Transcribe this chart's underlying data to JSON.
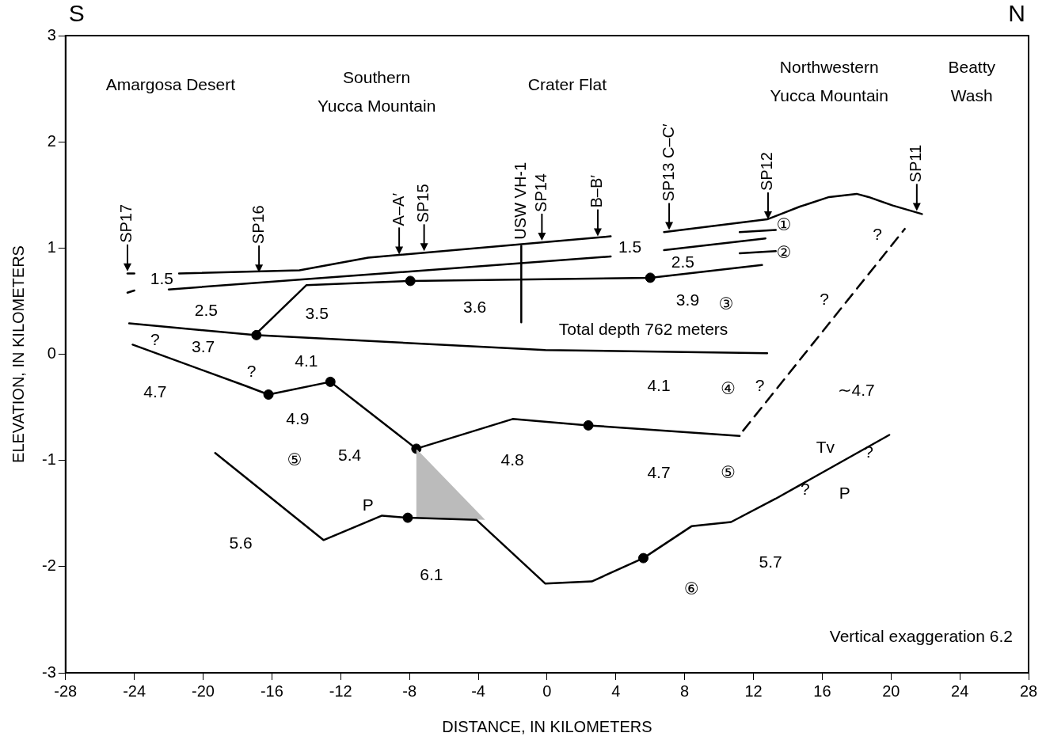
{
  "chart_data": {
    "type": "line",
    "xlabel": "DISTANCE, IN KILOMETERS",
    "ylabel": "ELEVATION, IN KILOMETERS",
    "xlim": [
      -28,
      28
    ],
    "xticks": [
      -28,
      -24,
      -20,
      -16,
      -12,
      -8,
      -4,
      0,
      4,
      8,
      12,
      16,
      20,
      24,
      28
    ],
    "ylim": [
      -3,
      3
    ],
    "yticks": [
      -3,
      -2,
      -1,
      0,
      1,
      2,
      3
    ],
    "legend": false,
    "series": [
      {
        "color": "#000000",
        "x": [
          -21.4,
          -14.4,
          -10.4,
          3.7
        ],
        "values": [
          0.76,
          0.79,
          0.91,
          1.11
        ]
      },
      {
        "color": "#000000",
        "x": [
          6.8,
          12.8,
          13.6,
          14.7,
          16.4,
          18.0,
          18.7,
          20.1,
          21.8
        ],
        "values": [
          1.15,
          1.27,
          1.32,
          1.39,
          1.48,
          1.51,
          1.48,
          1.4,
          1.32
        ]
      },
      {
        "color": "#000000",
        "x": [
          -24.4,
          -24.0
        ],
        "values": [
          0.76,
          0.76
        ]
      },
      {
        "color": "#000000",
        "x": [
          -24.4,
          -24.0
        ],
        "values": [
          0.58,
          0.6
        ]
      },
      {
        "color": "#000000",
        "x": [
          -22.0,
          3.7
        ],
        "values": [
          0.61,
          0.92
        ]
      },
      {
        "color": "#000000",
        "x": [
          6.8,
          12.7
        ],
        "values": [
          0.98,
          1.09
        ]
      },
      {
        "color": "#000000",
        "x": [
          11.2,
          13.3
        ],
        "values": [
          1.15,
          1.17
        ]
      },
      {
        "color": "#000000",
        "x": [
          11.2,
          13.3
        ],
        "values": [
          0.95,
          0.97
        ]
      },
      {
        "color": "#000000",
        "x": [
          -17.0,
          -14.0,
          -7.95,
          6.0,
          12.5
        ],
        "values": [
          0.18,
          0.65,
          0.69,
          0.72,
          0.84
        ]
      },
      {
        "color": "#000000",
        "x": [
          -24.3,
          -17.0,
          -0.1,
          12.8
        ],
        "values": [
          0.29,
          0.18,
          0.04,
          0.01
        ]
      },
      {
        "color": "#000000",
        "x": [
          -1.5,
          -1.5
        ],
        "values": [
          1.02,
          0.3
        ]
      },
      {
        "color": "#000000",
        "x": [
          -24.1,
          -17.5,
          -16.2,
          -12.6,
          -7.6,
          -2.0,
          2.4,
          11.2
        ],
        "values": [
          0.09,
          -0.3,
          -0.38,
          -0.26,
          -0.89,
          -0.61,
          -0.67,
          -0.77
        ]
      },
      {
        "color": "#000000",
        "line_style": "dashed",
        "x": [
          11.4,
          20.8
        ],
        "values": [
          -0.72,
          1.18
        ]
      },
      {
        "color": "#000000",
        "x": [
          -19.3,
          -13.0,
          -9.6,
          -8.1,
          -4.1,
          -0.1,
          2.6,
          5.6,
          8.4,
          10.7,
          13.3,
          19.9
        ],
        "values": [
          -0.93,
          -1.75,
          -1.52,
          -1.54,
          -1.56,
          -2.16,
          -2.14,
          -1.92,
          -1.62,
          -1.58,
          -1.36,
          -0.76
        ]
      },
      {
        "type": "area",
        "color": "#bbbbbb",
        "x": [
          -7.6,
          -3.6,
          -7.6
        ],
        "values": [
          -0.89,
          -1.56,
          -1.54
        ]
      },
      {
        "type": "scatter",
        "marker": "circle",
        "color": "#000000",
        "x": [
          -16.9,
          -7.95,
          6.0,
          -16.2,
          -12.6,
          -7.6,
          2.4,
          -8.1,
          5.6
        ],
        "values": [
          0.18,
          0.69,
          0.72,
          -0.38,
          -0.26,
          -0.89,
          -0.67,
          -1.54,
          -1.92
        ]
      }
    ],
    "annotations": [
      {
        "text": "SP17",
        "x": -24.4,
        "y": 0.78
      },
      {
        "text": "SP16",
        "x": -16.75,
        "y": 0.77
      },
      {
        "text": "A–A′",
        "x": -8.6,
        "y": 0.94
      },
      {
        "text": "SP15",
        "x": -7.15,
        "y": 0.97
      },
      {
        "text": "SP14",
        "x": -0.3,
        "y": 1.07
      },
      {
        "text": "B–B′",
        "x": 2.95,
        "y": 1.11
      },
      {
        "text": "SP13 C–C′",
        "x": 7.1,
        "y": 1.17
      },
      {
        "text": "SP12",
        "x": 12.85,
        "y": 1.27
      },
      {
        "text": "SP11",
        "x": 21.5,
        "y": 1.35
      },
      {
        "text": "USW VH-1",
        "x": -1.5,
        "y": 1.05
      },
      "S",
      "N",
      "Vertical exaggeration 6.2",
      "Amargosa Desert",
      "Southern\nYucca Mountain",
      "Crater Flat",
      "Northwestern\nYucca Mountain",
      "Beatty\nWash",
      "Total depth 762 meters",
      "1.5",
      "2.5",
      "3.5",
      "3.6",
      "1.5",
      "2.5",
      "3.9",
      "①",
      "②",
      "③",
      "3.7",
      "4.1",
      "?",
      "?",
      "4.7",
      "4.9",
      "⑤",
      "5.4",
      "P",
      "4.8",
      "4.1",
      "④",
      "?",
      "?",
      "?",
      "∼4.7",
      "4.7",
      "⑤",
      "Tv",
      "?",
      "?",
      "P",
      "5.6",
      "6.1",
      "⑥",
      "5.7"
    ]
  }
}
